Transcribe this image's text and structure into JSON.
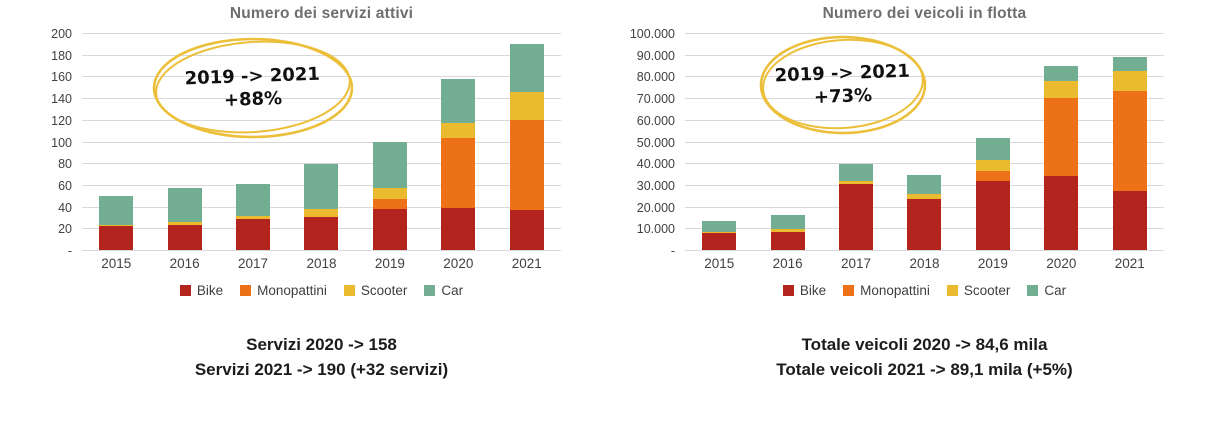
{
  "colors": {
    "grid": "#d8d8d8",
    "axis_text": "#414141",
    "title_text": "#6e6e6e",
    "caption_text": "#1c1c1c",
    "annotation_gold": "#ecbf3a",
    "annotation_text": "#111111",
    "bike": "#b3241f",
    "monopattini": "#ed7117",
    "scooter": "#eaba2f",
    "car": "#73ae93"
  },
  "chart_data": [
    {
      "id": "servizi-attivi",
      "type": "stacked-bar",
      "title": "Numero dei servizi attivi",
      "categories": [
        "2015",
        "2016",
        "2017",
        "2018",
        "2019",
        "2020",
        "2021"
      ],
      "series": [
        {
          "name": "Bike",
          "color": "#b3241f",
          "values": [
            22,
            23,
            29,
            30,
            38,
            39,
            37
          ]
        },
        {
          "name": "Monopattini",
          "color": "#ed7117",
          "values": [
            0,
            0,
            0,
            0,
            9,
            64,
            83
          ]
        },
        {
          "name": "Scooter",
          "color": "#eaba2f",
          "values": [
            1,
            3,
            2,
            8,
            10,
            14,
            26
          ]
        },
        {
          "name": "Car",
          "color": "#73ae93",
          "values": [
            27,
            31,
            30,
            41,
            43,
            41,
            44
          ]
        }
      ],
      "totals": [
        50,
        57,
        61,
        79,
        100,
        158,
        190
      ],
      "ymax": 200,
      "ylim": [
        0,
        200
      ],
      "grid": true,
      "legend_position": "bottom",
      "tick_values": [
        200,
        180,
        160,
        140,
        120,
        100,
        80,
        60,
        40,
        20,
        0
      ],
      "tick_labels": [
        "200",
        "180",
        "160",
        "140",
        "120",
        "100",
        "80",
        "60",
        "40",
        "20",
        "-"
      ],
      "annotation": {
        "line1": "2019 -> 2021",
        "line2": "+88%"
      },
      "captions": [
        "Servizi 2020 -> 158",
        "Servizi 2021 -> 190 (+32 servizi)"
      ]
    },
    {
      "id": "veicoli-in-flotta",
      "type": "stacked-bar",
      "title": "Numero dei veicoli in flotta",
      "categories": [
        "2015",
        "2016",
        "2017",
        "2018",
        "2019",
        "2020",
        "2021"
      ],
      "series": [
        {
          "name": "Bike",
          "color": "#b3241f",
          "values": [
            8000,
            8500,
            30500,
            23500,
            32000,
            34000,
            27000
          ]
        },
        {
          "name": "Monopattini",
          "color": "#ed7117",
          "values": [
            0,
            0,
            0,
            0,
            4500,
            36000,
            46500
          ]
        },
        {
          "name": "Scooter",
          "color": "#eaba2f",
          "values": [
            500,
            1200,
            1500,
            2500,
            5000,
            8000,
            9000
          ]
        },
        {
          "name": "Car",
          "color": "#73ae93",
          "values": [
            5000,
            6600,
            7500,
            8500,
            10000,
            6600,
            6600
          ]
        }
      ],
      "totals": [
        13500,
        16300,
        39500,
        34500,
        51500,
        84600,
        89100
      ],
      "ymax": 100000,
      "ylim": [
        0,
        100000
      ],
      "grid": true,
      "legend_position": "bottom",
      "tick_values": [
        100000,
        90000,
        80000,
        70000,
        60000,
        50000,
        40000,
        30000,
        20000,
        10000,
        0
      ],
      "tick_labels": [
        "100.000",
        "90.000",
        "80.000",
        "70.000",
        "60.000",
        "50.000",
        "40.000",
        "30.000",
        "20.000",
        "10.000",
        "-"
      ],
      "annotation": {
        "line1": "2019 -> 2021",
        "line2": "+73%"
      },
      "captions": [
        "Totale veicoli 2020 -> 84,6 mila",
        "Totale veicoli 2021 -> 89,1 mila (+5%)"
      ]
    }
  ]
}
